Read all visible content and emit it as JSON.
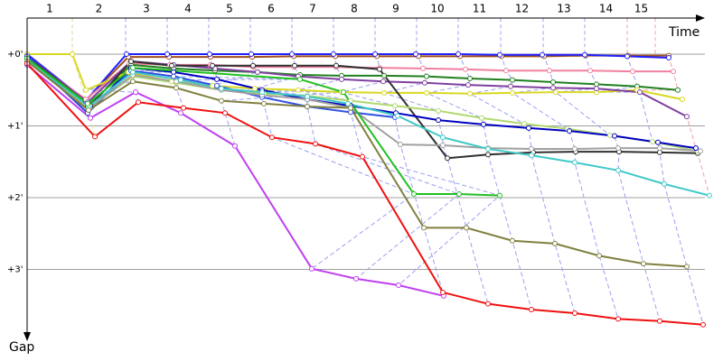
{
  "chart_data": {
    "type": "line",
    "x_label": "Time",
    "y_label": "Gap",
    "laps": [
      1,
      2,
      3,
      4,
      5,
      6,
      7,
      8,
      9,
      10,
      11,
      12,
      13,
      14,
      15
    ],
    "xlim": [
      0,
      152
    ],
    "xticks": [
      0,
      10,
      21.8,
      31,
      40.2,
      49.4,
      58.6,
      67.8,
      77,
      86.2,
      95.4,
      104.8,
      114.2,
      123.4,
      132.8,
      139
    ],
    "ylim": [
      -0.5,
      4
    ],
    "yticks": [
      {
        "value": 0,
        "label": "+0'"
      },
      {
        "value": 1,
        "label": "+1'"
      },
      {
        "value": 2,
        "label": "+2'"
      },
      {
        "value": 3,
        "label": "+3'"
      }
    ],
    "grid": true,
    "series": [
      {
        "color": "#a05020",
        "x": [
          0,
          13,
          22.4,
          31.4,
          40.6,
          49.8,
          59,
          68.2,
          77.4,
          86.6,
          95.8,
          105,
          114.4,
          123.6,
          133,
          142
        ],
        "values": [
          0.02,
          0.64,
          0.04,
          0.04,
          0.04,
          0.04,
          0.03,
          0.03,
          0.03,
          0.03,
          0.03,
          0.03,
          0.03,
          0.02,
          0.02,
          0.02
        ]
      },
      {
        "color": "#2020ff",
        "x": [
          0,
          13,
          22,
          31,
          40.4,
          49.6,
          58.6,
          67.8,
          77,
          86,
          95.4,
          104.6,
          114,
          123.4,
          132.8,
          142
        ],
        "values": [
          0,
          0.65,
          0,
          0,
          0,
          0,
          0,
          0,
          0,
          0,
          0,
          0.01,
          0.01,
          0.01,
          0.03,
          0.05
        ]
      },
      {
        "color": "#f080a0",
        "x": [
          0,
          13,
          22.6,
          31.6,
          40.6,
          50,
          59,
          68.4,
          78,
          87.6,
          97,
          106,
          115.6,
          124.6,
          134,
          143
        ],
        "values": [
          0.05,
          0.63,
          0.13,
          0.15,
          0.15,
          0.18,
          0.18,
          0.18,
          0.19,
          0.2,
          0.21,
          0.23,
          0.23,
          0.23,
          0.24,
          0.24
        ]
      },
      {
        "color": "#208020",
        "x": [
          0,
          13.4,
          23,
          32.4,
          41.6,
          51,
          60.4,
          69.6,
          79,
          88.4,
          98,
          107.4,
          116.4,
          126,
          135,
          144
        ],
        "values": [
          0.04,
          0.73,
          0.15,
          0.2,
          0.23,
          0.25,
          0.29,
          0.3,
          0.3,
          0.31,
          0.34,
          0.36,
          0.39,
          0.42,
          0.45,
          0.5
        ]
      },
      {
        "color": "#d8d820",
        "x": [
          0,
          10,
          13,
          22.4,
          32,
          41,
          50.4,
          60,
          69.6,
          79,
          88.4,
          98,
          107.4,
          117,
          126,
          135,
          145
        ],
        "values": [
          0,
          0,
          0.5,
          0.25,
          0.38,
          0.44,
          0.48,
          0.5,
          0.53,
          0.54,
          0.54,
          0.55,
          0.54,
          0.53,
          0.53,
          0.5,
          0.63
        ]
      },
      {
        "color": "#8040a0",
        "x": [
          0,
          13.4,
          23,
          32.4,
          41.6,
          51,
          60,
          69.6,
          78.8,
          88,
          97.6,
          107,
          116.4,
          126,
          135.6,
          146
        ],
        "values": [
          0.03,
          0.67,
          0.1,
          0.15,
          0.2,
          0.25,
          0.31,
          0.35,
          0.38,
          0.4,
          0.43,
          0.45,
          0.47,
          0.48,
          0.53,
          0.87
        ]
      },
      {
        "color": "#303030",
        "x": [
          0,
          14,
          23,
          32,
          41,
          50,
          59.2,
          68.4,
          78,
          93,
          102,
          112,
          121.4,
          131,
          140,
          148.4
        ],
        "values": [
          0.04,
          0.72,
          0.1,
          0.16,
          0.16,
          0.16,
          0.16,
          0.16,
          0.21,
          1.45,
          1.4,
          1.37,
          1.36,
          1.36,
          1.37,
          1.38
        ]
      },
      {
        "color": "#b0d870",
        "x": [
          0,
          13.6,
          23.4,
          33,
          43,
          52.4,
          62,
          71.6,
          81.4,
          91,
          100.6,
          110,
          119.6,
          129,
          138.4,
          148.4
        ],
        "values": [
          0.08,
          0.75,
          0.31,
          0.4,
          0.5,
          0.55,
          0.58,
          0.65,
          0.72,
          0.79,
          0.89,
          0.97,
          1.04,
          1.13,
          1.22,
          1.35
        ]
      },
      {
        "color": "#0000c0",
        "x": [
          0,
          13.4,
          23,
          32.4,
          42,
          52,
          62,
          71.6,
          81.6,
          91,
          101,
          111,
          120,
          130,
          139.6,
          148
        ],
        "values": [
          0.03,
          0.82,
          0.19,
          0.25,
          0.35,
          0.5,
          0.63,
          0.72,
          0.82,
          0.92,
          0.98,
          1.03,
          1.07,
          1.14,
          1.23,
          1.31
        ]
      },
      {
        "color": "#3050e0",
        "x": [
          0,
          13.4,
          23,
          32.4,
          42,
          52,
          62,
          71.6,
          81.4
        ],
        "values": [
          0.03,
          0.82,
          0.23,
          0.31,
          0.44,
          0.6,
          0.73,
          0.81,
          0.88
        ]
      },
      {
        "color": "#a0a0a0",
        "x": [
          0,
          13.8,
          23.4,
          33,
          43,
          52,
          62,
          71.6,
          82.6,
          92,
          102,
          111.6,
          121.2,
          130.8,
          140,
          149
        ],
        "values": [
          0.06,
          0.75,
          0.29,
          0.38,
          0.5,
          0.57,
          0.63,
          0.75,
          1.26,
          1.27,
          1.31,
          1.32,
          1.32,
          1.31,
          1.31,
          1.35
        ]
      },
      {
        "color": "#40c8c8",
        "x": [
          0,
          13.6,
          23.4,
          34,
          43,
          52,
          62,
          71,
          82,
          92,
          102,
          111.6,
          121.2,
          130.8,
          141,
          151
        ],
        "values": [
          0.08,
          0.73,
          0.25,
          0.36,
          0.48,
          0.53,
          0.59,
          0.69,
          0.86,
          1.16,
          1.32,
          1.41,
          1.51,
          1.62,
          1.81,
          1.97
        ]
      },
      {
        "color": "#20c020",
        "x": [
          0,
          13.4,
          23.4,
          60.4,
          70,
          85.6,
          95.6,
          104.6
        ],
        "values": [
          0.06,
          0.69,
          0.19,
          0.35,
          0.53,
          1.95,
          1.95,
          1.97
        ]
      },
      {
        "color": "#808040",
        "x": [
          0,
          13.6,
          23.4,
          33,
          43,
          52.4,
          62,
          71.6,
          87.8,
          97.2,
          107.4,
          116.8,
          126.6,
          136.4,
          146
        ],
        "values": [
          0.1,
          0.78,
          0.38,
          0.47,
          0.65,
          0.69,
          0.73,
          0.75,
          2.42,
          2.42,
          2.6,
          2.64,
          2.81,
          2.92,
          2.96
        ]
      },
      {
        "color": "#c040f0",
        "x": [
          0,
          14,
          24,
          34,
          46,
          63,
          72.8,
          82.2,
          92.2
        ],
        "values": [
          0.15,
          0.89,
          0.53,
          0.82,
          1.28,
          2.99,
          3.13,
          3.22,
          3.37
        ]
      },
      {
        "color": "#f01010",
        "x": [
          0,
          15,
          24.6,
          34.6,
          43.8,
          54.2,
          63.8,
          74.2,
          92,
          102,
          111.6,
          121.2,
          130.8,
          140,
          149.6
        ],
        "values": [
          0.13,
          1.15,
          0.67,
          0.75,
          0.82,
          1.16,
          1.25,
          1.43,
          3.32,
          3.48,
          3.56,
          3.61,
          3.69,
          3.72,
          3.77
        ]
      }
    ]
  }
}
